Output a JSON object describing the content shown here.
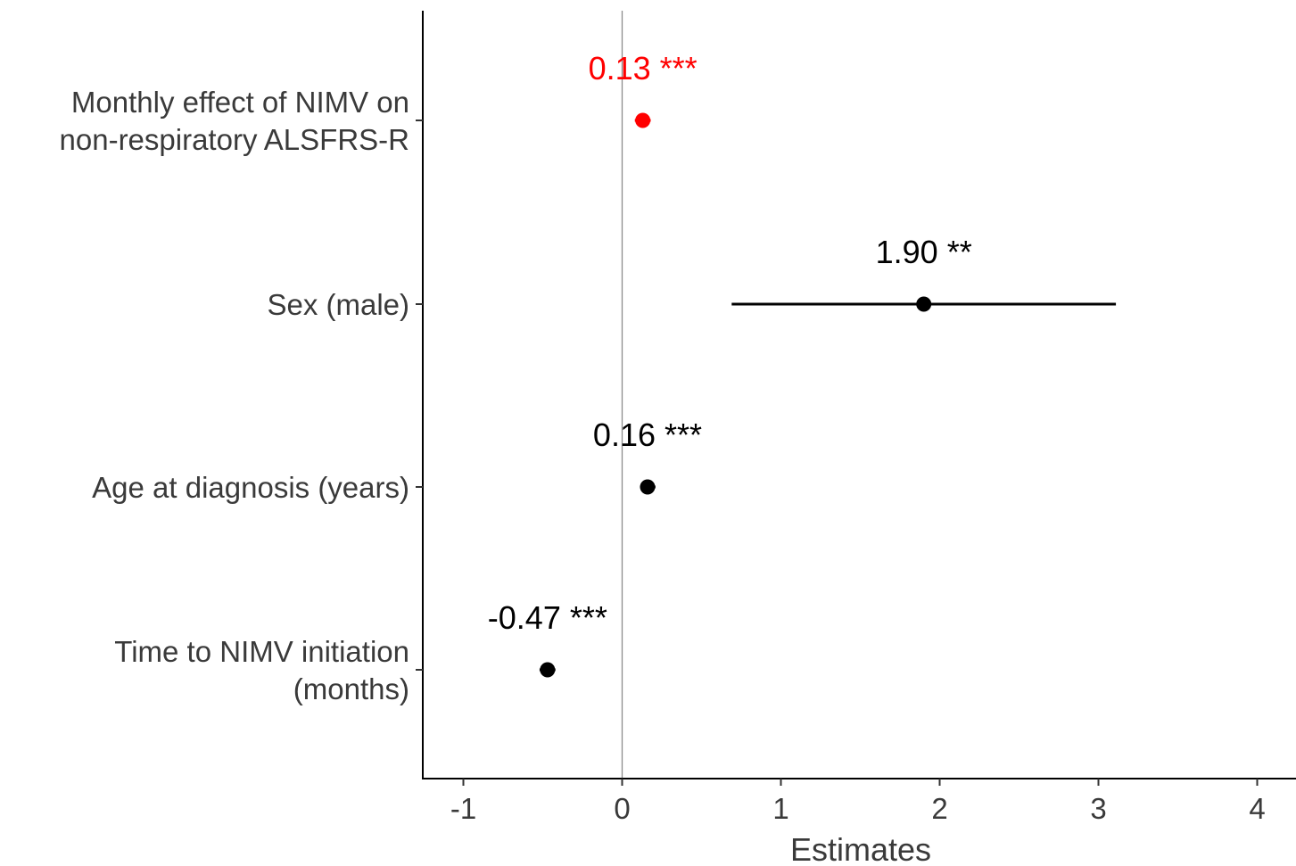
{
  "chart_data": {
    "type": "forest",
    "xlabel": "Estimates",
    "xlim": [
      -1.25,
      4.25
    ],
    "x_ticks": [
      -1,
      0,
      1,
      2,
      3,
      4
    ],
    "x_tick_labels": [
      "-1",
      "0",
      "1",
      "2",
      "3",
      "4"
    ],
    "reference_line": 0,
    "grid": false,
    "colors": {
      "highlight": "#ff0000",
      "default": "#000000",
      "axis_text": "#3a3a3a",
      "reference_line": "#8c8c8c"
    },
    "rows": [
      {
        "label_lines": [
          "Monthly effect of NIMV on",
          "non-respiratory ALSFRS-R"
        ],
        "estimate": 0.13,
        "ci_low": 0.08,
        "ci_high": 0.18,
        "value_label": "0.13 ***",
        "highlight": true
      },
      {
        "label_lines": [
          "Sex (male)"
        ],
        "estimate": 1.9,
        "ci_low": 0.69,
        "ci_high": 3.11,
        "value_label": "1.90 **",
        "highlight": false
      },
      {
        "label_lines": [
          "Age at diagnosis (years)"
        ],
        "estimate": 0.16,
        "ci_low": 0.12,
        "ci_high": 0.21,
        "value_label": "0.16 ***",
        "highlight": false
      },
      {
        "label_lines": [
          "Time to NIMV initiation",
          "(months)"
        ],
        "estimate": -0.47,
        "ci_low": -0.52,
        "ci_high": -0.42,
        "value_label": "-0.47 ***",
        "highlight": false
      }
    ]
  }
}
